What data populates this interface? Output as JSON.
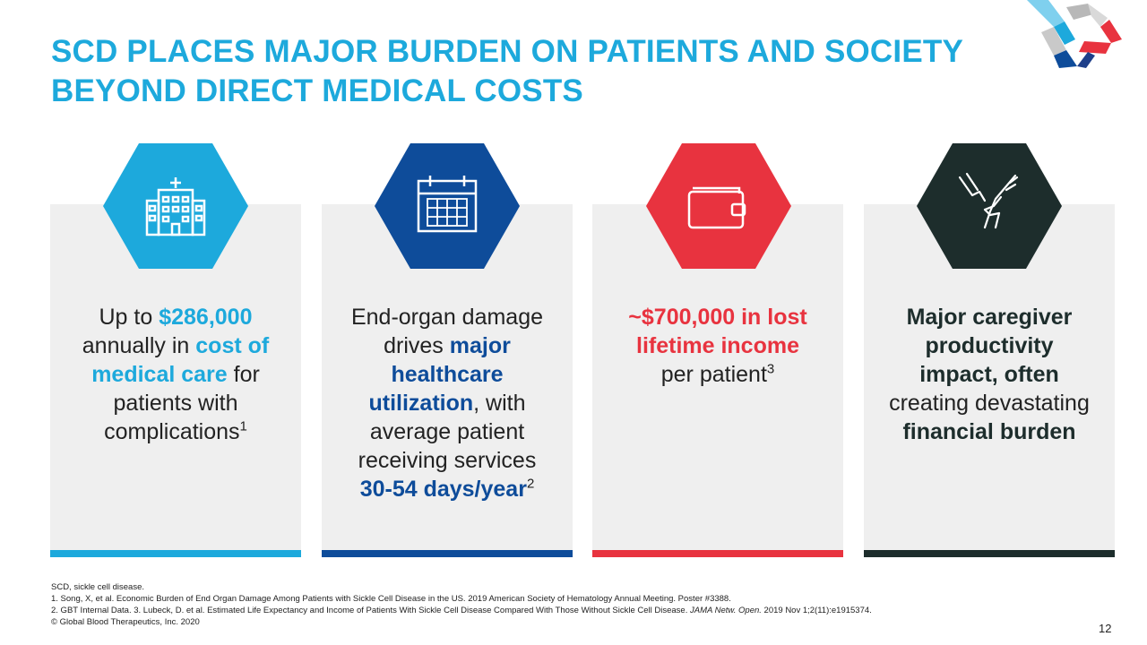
{
  "title": "SCD PLACES MAJOR BURDEN ON PATIENTS AND SOCIETY BEYOND DIRECT MEDICAL COSTS",
  "colors": {
    "cyan": "#1da9dc",
    "blue": "#0e4c9a",
    "red": "#e8333f",
    "dark": "#1d2d2c",
    "card": "#efefef"
  },
  "cards": [
    {
      "icon": "hospital-icon",
      "t1": "Up to ",
      "t2": "$286,000",
      "t3": "annually in ",
      "t4": "cost of",
      "t5": "medical care",
      "t6": " for",
      "t7": "patients with",
      "t8": "complications",
      "sup": "1"
    },
    {
      "icon": "calendar-icon",
      "t1": "End-organ damage",
      "t2": "drives ",
      "t3": "major",
      "t4": "healthcare",
      "t5": "utilization",
      "t6": ", with",
      "t7": "average patient",
      "t8": "receiving services",
      "t9": "30-54 days/year",
      "sup": "2"
    },
    {
      "icon": "wallet-icon",
      "t1": "~$700,000 in lost",
      "t2": "lifetime income",
      "t3": "per patient",
      "sup": "3"
    },
    {
      "icon": "holding-hands-icon",
      "t1": "Major caregiver",
      "t2": "productivity",
      "t3": "impact, often",
      "t4": "creating devastating",
      "t5": "financial burden"
    }
  ],
  "footnotes": {
    "abbrev": "SCD, sickle cell disease.",
    "ref1": "1. Song, X, et al. Economic Burden of End Organ Damage Among Patients with Sickle Cell Disease in the US. 2019 American Society of Hematology Annual Meeting. Poster #3388.",
    "ref23_a": "2. GBT Internal Data. 3. Lubeck, D. et al. Estimated Life Expectancy and Income of Patients With Sickle Cell Disease Compared With Those Without Sickle Cell Disease. ",
    "ref23_journal": "JAMA Netw. Open.",
    "ref23_b": " 2019 Nov 1;2(11):e1915374.",
    "copyright": "© Global Blood Therapeutics, Inc. 2020"
  },
  "page_number": "12"
}
